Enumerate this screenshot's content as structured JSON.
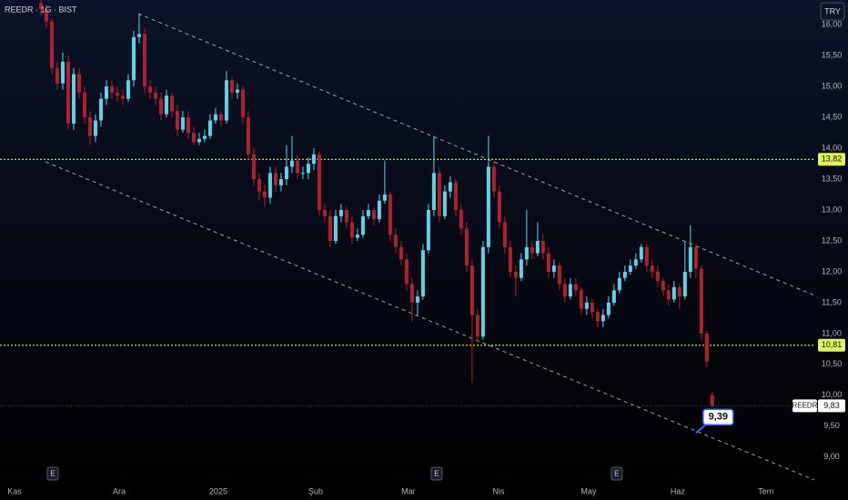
{
  "chart_data": {
    "type": "candlestick",
    "title": "REEDR · 1G · BIST",
    "currency": "TRY",
    "ylim": [
      8.57,
      16.4
    ],
    "yticks": [
      {
        "value": 9,
        "label": "9,00"
      },
      {
        "value": 9.5,
        "label": "9,50"
      },
      {
        "value": 10,
        "label": "10,00"
      },
      {
        "value": 10.5,
        "label": "10,50"
      },
      {
        "value": 11,
        "label": "11,00"
      },
      {
        "value": 11.5,
        "label": "11,50"
      },
      {
        "value": 12,
        "label": "12,00"
      },
      {
        "value": 12.5,
        "label": "12,50"
      },
      {
        "value": 13,
        "label": "13,00"
      },
      {
        "value": 13.5,
        "label": "13,50"
      },
      {
        "value": 14,
        "label": "14,00"
      },
      {
        "value": 14.5,
        "label": "14,50"
      },
      {
        "value": 15,
        "label": "15,00"
      },
      {
        "value": 15.5,
        "label": "15,50"
      },
      {
        "value": 16,
        "label": "16,00"
      }
    ],
    "xlim": [
      -7.5,
      141.7
    ],
    "xticks": [
      {
        "value": -4.83,
        "label": "Kas"
      },
      {
        "value": 14.33,
        "label": "Ara"
      },
      {
        "value": 32.5,
        "label": "2025"
      },
      {
        "value": 50.33,
        "label": "Şub"
      },
      {
        "value": 67.33,
        "label": "Mar"
      },
      {
        "value": 83.83,
        "label": "Nis"
      },
      {
        "value": 100.33,
        "label": "May"
      },
      {
        "value": 116.67,
        "label": "Haz"
      },
      {
        "value": 132.83,
        "label": "Tem"
      }
    ],
    "series": [
      {
        "name": "REEDR",
        "up_color": "#5fd3e6",
        "down_color": "#b0202f",
        "ohlc": [
          [
            16.35,
            16.42,
            16.15,
            16.25
          ],
          [
            16.25,
            16.32,
            15.95,
            16.05
          ],
          [
            16.05,
            16.1,
            15.2,
            15.3
          ],
          [
            15.3,
            15.4,
            14.95,
            15.05
          ],
          [
            15.05,
            15.55,
            14.95,
            15.4
          ],
          [
            15.4,
            15.5,
            14.3,
            14.4
          ],
          [
            14.4,
            15.3,
            14.3,
            15.2
          ],
          [
            15.2,
            15.3,
            14.8,
            14.9
          ],
          [
            14.9,
            15.0,
            14.4,
            14.5
          ],
          [
            14.5,
            14.6,
            14.05,
            14.2
          ],
          [
            14.2,
            14.55,
            14.1,
            14.45
          ],
          [
            14.45,
            14.9,
            14.35,
            14.8
          ],
          [
            14.8,
            15.1,
            14.7,
            15.0
          ],
          [
            15.0,
            15.1,
            14.8,
            14.9
          ],
          [
            14.9,
            15.0,
            14.75,
            14.85
          ],
          [
            14.85,
            14.95,
            14.7,
            14.8
          ],
          [
            14.8,
            15.2,
            14.75,
            15.1
          ],
          [
            15.1,
            15.9,
            15.0,
            15.8
          ],
          [
            15.8,
            16.18,
            15.7,
            15.85
          ],
          [
            15.85,
            15.95,
            14.9,
            15.0
          ],
          [
            15.0,
            15.1,
            14.8,
            14.9
          ],
          [
            14.9,
            15.0,
            14.7,
            14.8
          ],
          [
            14.8,
            14.9,
            14.45,
            14.55
          ],
          [
            14.55,
            14.95,
            14.5,
            14.85
          ],
          [
            14.85,
            14.9,
            14.5,
            14.6
          ],
          [
            14.6,
            14.7,
            14.2,
            14.3
          ],
          [
            14.3,
            14.6,
            14.25,
            14.5
          ],
          [
            14.5,
            14.6,
            14.15,
            14.25
          ],
          [
            14.25,
            14.35,
            14.05,
            14.1
          ],
          [
            14.1,
            14.25,
            14.05,
            14.15
          ],
          [
            14.15,
            14.3,
            14.1,
            14.2
          ],
          [
            14.2,
            14.55,
            14.15,
            14.45
          ],
          [
            14.45,
            14.65,
            14.4,
            14.55
          ],
          [
            14.55,
            14.6,
            14.35,
            14.45
          ],
          [
            14.45,
            15.25,
            14.4,
            15.1
          ],
          [
            15.1,
            15.15,
            14.8,
            14.9
          ],
          [
            14.9,
            15.05,
            14.8,
            14.95
          ],
          [
            14.95,
            15.0,
            14.4,
            14.5
          ],
          [
            14.5,
            14.6,
            13.8,
            13.9
          ],
          [
            13.9,
            14.0,
            13.4,
            13.5
          ],
          [
            13.5,
            13.6,
            13.15,
            13.3
          ],
          [
            13.3,
            13.4,
            13.05,
            13.2
          ],
          [
            13.2,
            13.7,
            13.1,
            13.6
          ],
          [
            13.6,
            13.7,
            13.3,
            13.4
          ],
          [
            13.4,
            13.6,
            13.3,
            13.5
          ],
          [
            13.5,
            14.05,
            13.4,
            13.7
          ],
          [
            13.7,
            14.2,
            13.6,
            13.8
          ],
          [
            13.8,
            13.9,
            13.5,
            13.6
          ],
          [
            13.6,
            13.7,
            13.5,
            13.6
          ],
          [
            13.6,
            13.85,
            13.5,
            13.75
          ],
          [
            13.75,
            14.0,
            13.65,
            13.9
          ],
          [
            13.9,
            13.95,
            12.9,
            13.0
          ],
          [
            13.0,
            13.1,
            12.8,
            12.9
          ],
          [
            12.9,
            13.0,
            12.4,
            12.5
          ],
          [
            12.5,
            13.0,
            12.45,
            12.9
          ],
          [
            12.9,
            13.1,
            12.8,
            13.0
          ],
          [
            13.0,
            13.05,
            12.7,
            12.8
          ],
          [
            12.8,
            12.9,
            12.45,
            12.55
          ],
          [
            12.55,
            12.7,
            12.5,
            12.6
          ],
          [
            12.6,
            13.0,
            12.55,
            12.9
          ],
          [
            12.9,
            13.1,
            12.85,
            13.0
          ],
          [
            13.0,
            13.05,
            12.75,
            12.85
          ],
          [
            12.85,
            13.25,
            12.8,
            13.15
          ],
          [
            13.15,
            13.8,
            13.1,
            13.25
          ],
          [
            13.25,
            13.3,
            12.5,
            12.6
          ],
          [
            12.6,
            12.7,
            12.3,
            12.4
          ],
          [
            12.4,
            12.5,
            12.1,
            12.2
          ],
          [
            12.2,
            12.3,
            11.7,
            11.8
          ],
          [
            11.8,
            11.9,
            11.2,
            11.5
          ],
          [
            11.5,
            11.7,
            11.3,
            11.6
          ],
          [
            11.6,
            12.45,
            11.55,
            12.35
          ],
          [
            12.35,
            13.1,
            12.3,
            13.0
          ],
          [
            13.0,
            14.2,
            12.9,
            13.6
          ],
          [
            13.6,
            13.7,
            12.8,
            12.9
          ],
          [
            12.9,
            13.4,
            12.85,
            13.3
          ],
          [
            13.3,
            13.55,
            13.2,
            13.45
          ],
          [
            13.45,
            13.5,
            12.9,
            13.0
          ],
          [
            13.0,
            13.1,
            12.6,
            12.7
          ],
          [
            12.7,
            12.8,
            12.0,
            12.1
          ],
          [
            12.1,
            12.2,
            10.2,
            11.3
          ],
          [
            11.3,
            11.4,
            10.85,
            10.95
          ],
          [
            10.95,
            12.5,
            10.9,
            12.4
          ],
          [
            12.4,
            14.2,
            12.3,
            13.7
          ],
          [
            13.7,
            13.8,
            13.2,
            13.3
          ],
          [
            13.3,
            13.4,
            12.7,
            12.8
          ],
          [
            12.8,
            12.9,
            12.3,
            12.4
          ],
          [
            12.4,
            12.5,
            11.9,
            12.0
          ],
          [
            12.0,
            12.1,
            11.6,
            11.9
          ],
          [
            11.9,
            12.3,
            11.85,
            12.2
          ],
          [
            12.2,
            13.0,
            12.1,
            12.4
          ],
          [
            12.4,
            12.5,
            12.2,
            12.3
          ],
          [
            12.3,
            12.8,
            12.25,
            12.5
          ],
          [
            12.5,
            12.6,
            12.2,
            12.3
          ],
          [
            12.3,
            12.4,
            11.9,
            12.0
          ],
          [
            12.0,
            12.2,
            11.9,
            12.1
          ],
          [
            12.1,
            12.15,
            11.7,
            11.8
          ],
          [
            11.8,
            11.9,
            11.5,
            11.6
          ],
          [
            11.6,
            11.9,
            11.55,
            11.8
          ],
          [
            11.8,
            11.9,
            11.6,
            11.7
          ],
          [
            11.7,
            11.75,
            11.3,
            11.4
          ],
          [
            11.4,
            11.6,
            11.3,
            11.5
          ],
          [
            11.5,
            11.55,
            11.25,
            11.35
          ],
          [
            11.35,
            11.4,
            11.1,
            11.2
          ],
          [
            11.2,
            11.4,
            11.1,
            11.3
          ],
          [
            11.3,
            11.6,
            11.25,
            11.5
          ],
          [
            11.5,
            11.8,
            11.45,
            11.7
          ],
          [
            11.7,
            12.0,
            11.65,
            11.9
          ],
          [
            11.9,
            12.1,
            11.85,
            12.0
          ],
          [
            12.0,
            12.2,
            11.95,
            12.1
          ],
          [
            12.1,
            12.3,
            12.05,
            12.2
          ],
          [
            12.2,
            12.45,
            12.15,
            12.4
          ],
          [
            12.4,
            12.45,
            12.0,
            12.1
          ],
          [
            12.1,
            12.2,
            11.9,
            12.0
          ],
          [
            12.0,
            12.1,
            11.75,
            11.85
          ],
          [
            11.85,
            11.9,
            11.6,
            11.7
          ],
          [
            11.7,
            11.8,
            11.45,
            11.55
          ],
          [
            11.55,
            11.85,
            11.5,
            11.75
          ],
          [
            11.75,
            11.8,
            11.4,
            11.6
          ],
          [
            11.6,
            12.5,
            11.55,
            12.0
          ],
          [
            12.0,
            12.75,
            11.9,
            12.4
          ],
          [
            12.4,
            12.45,
            11.9,
            12.05
          ],
          [
            12.05,
            12.1,
            10.9,
            11.0
          ],
          [
            11.0,
            11.05,
            10.45,
            10.55
          ],
          [
            10.0,
            10.05,
            9.8,
            9.83
          ]
        ]
      }
    ],
    "last_price": {
      "value": 9.83,
      "label": "9,83"
    },
    "horizontal_lines": [
      {
        "value": 13.82,
        "label": "13,82",
        "color": "#dff35a"
      },
      {
        "value": 10.81,
        "label": "10,81",
        "color": "#dff35a"
      }
    ],
    "trend_lines": [
      {
        "points": [
          [
            17.83,
            16.18
          ],
          [
            141.67,
            11.62
          ]
        ],
        "color": "#c8cad0"
      },
      {
        "points": [
          [
            0.83,
            13.78
          ],
          [
            141.67,
            8.63
          ]
        ],
        "color": "#c8cad0"
      }
    ],
    "callout": {
      "text": "9,39",
      "value": 9.39,
      "x": 120
    },
    "earnings": [
      {
        "x": 2.17,
        "label": "E"
      },
      {
        "x": 72.5,
        "label": "E"
      },
      {
        "x": 105.5,
        "label": "E"
      }
    ]
  }
}
